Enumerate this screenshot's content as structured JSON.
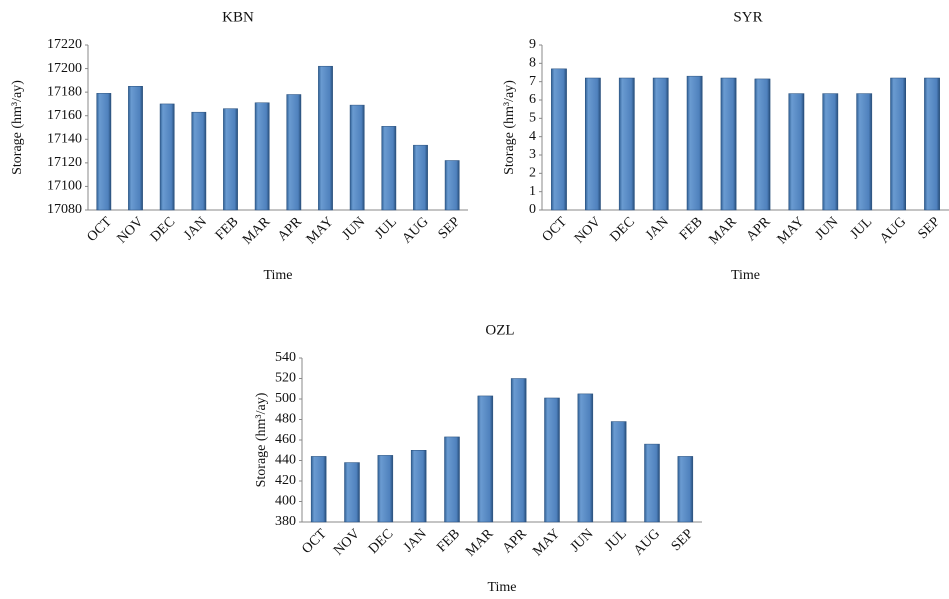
{
  "chart_data": [
    {
      "type": "bar",
      "title": "KBN",
      "x_label": "Time",
      "y_label": "Storage (hm³/ay)",
      "categories": [
        "OCT",
        "NOV",
        "DEC",
        "JAN",
        "FEB",
        "MAR",
        "APR",
        "MAY",
        "JUN",
        "JUL",
        "AUG",
        "SEP"
      ],
      "values": [
        17179,
        17185,
        17170,
        17163,
        17166,
        17171,
        17178,
        17202,
        17169,
        17151,
        17135,
        17122
      ],
      "color": "#4f81bd",
      "ylim": [
        17080,
        17220
      ],
      "yticks": [
        17080,
        17100,
        17120,
        17140,
        17160,
        17180,
        17200,
        17220
      ]
    },
    {
      "type": "bar",
      "title": "SYR",
      "x_label": "Time",
      "y_label": "Storage (hm³/ay)",
      "categories": [
        "OCT",
        "NOV",
        "DEC",
        "JAN",
        "FEB",
        "MAR",
        "APR",
        "MAY",
        "JUN",
        "JUL",
        "AUG",
        "SEP"
      ],
      "values": [
        7.7,
        7.2,
        7.2,
        7.2,
        7.3,
        7.2,
        7.15,
        6.35,
        6.35,
        6.35,
        7.2,
        7.2
      ],
      "color": "#4f81bd",
      "ylim": [
        0,
        9
      ],
      "yticks": [
        0,
        1,
        2,
        3,
        4,
        5,
        6,
        7,
        8,
        9
      ]
    },
    {
      "type": "bar",
      "title": "OZL",
      "x_label": "Time",
      "y_label": "Storage (hm³/ay)",
      "categories": [
        "OCT",
        "NOV",
        "DEC",
        "JAN",
        "FEB",
        "MAR",
        "APR",
        "MAY",
        "JUN",
        "JUL",
        "AUG",
        "SEP"
      ],
      "values": [
        444,
        438,
        445,
        450,
        463,
        503,
        520,
        501,
        505,
        478,
        456,
        444
      ],
      "color": "#4f81bd",
      "ylim": [
        380,
        540
      ],
      "yticks": [
        380,
        400,
        420,
        440,
        460,
        480,
        500,
        520,
        540
      ]
    }
  ]
}
